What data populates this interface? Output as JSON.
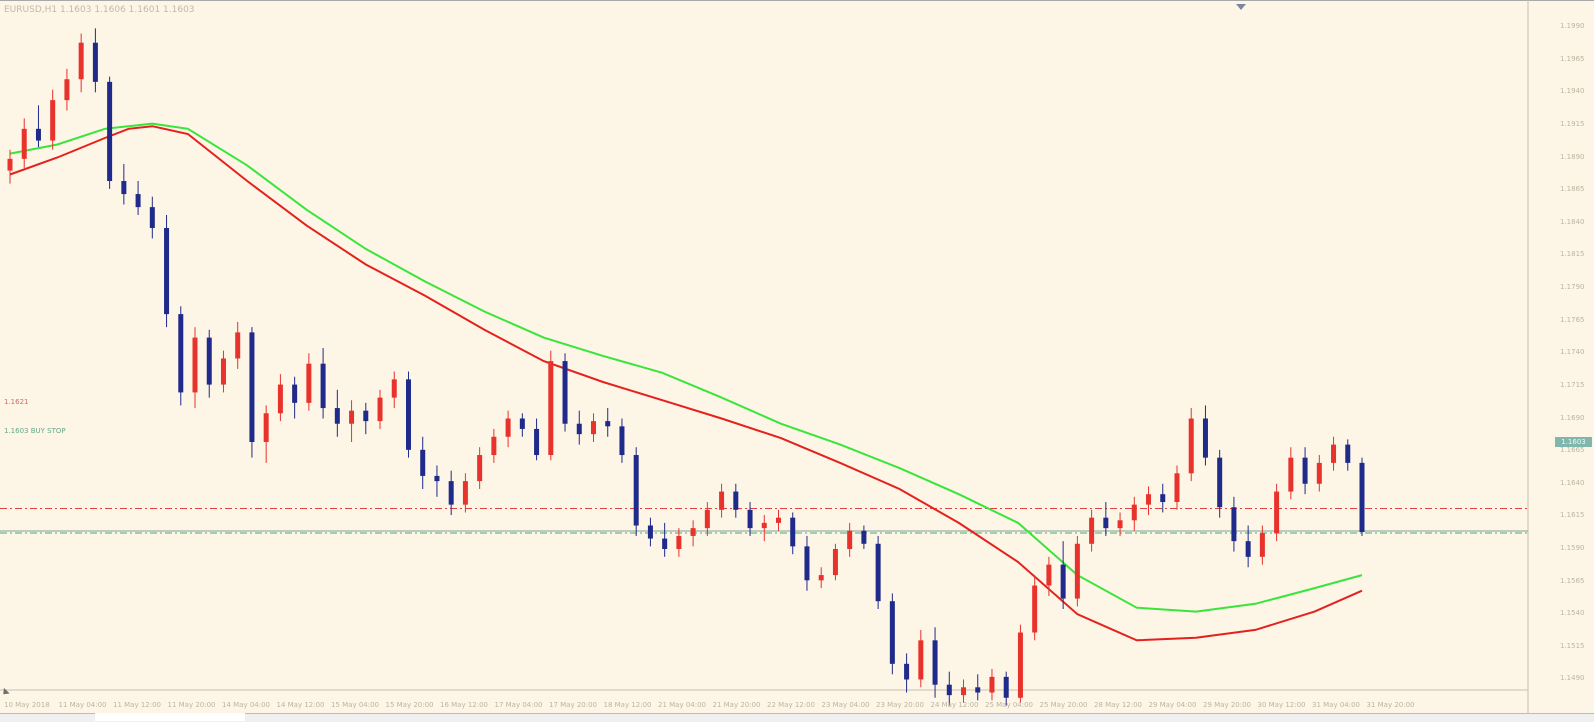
{
  "window": {
    "symbol_info": "EURUSD,H1  1.1603  1.1606  1.1601  1.1603"
  },
  "colors": {
    "background": "#fdf5e6",
    "bull_candle": "#e8322c",
    "bear_candle": "#1f2a8a",
    "ma_fast": "#e4211c",
    "ma_slow": "#38e53a",
    "level_red": "#e04242",
    "level_green": "#3fb06a",
    "bid_line": "#8a9aa0"
  },
  "price_axis": {
    "labels": [
      "1.1990",
      "1.1965",
      "1.1940",
      "1.1915",
      "1.1890",
      "1.1865",
      "1.1840",
      "1.1815",
      "1.1790",
      "1.1765",
      "1.1740",
      "1.1715",
      "1.1690",
      "1.1665",
      "1.1640",
      "1.1615",
      "1.1590",
      "1.1565",
      "1.1540",
      "1.1515",
      "1.1490"
    ]
  },
  "time_axis": {
    "labels": [
      "10 May 2018",
      "11 May 04:00",
      "11 May 12:00",
      "11 May 20:00",
      "14 May 04:00",
      "14 May 12:00",
      "15 May 04:00",
      "15 May 20:00",
      "16 May 12:00",
      "17 May 04:00",
      "17 May 20:00",
      "18 May 12:00",
      "21 May 04:00",
      "21 May 20:00",
      "22 May 12:00",
      "23 May 04:00",
      "23 May 20:00",
      "24 May 12:00",
      "25 May 04:00",
      "25 May 20:00",
      "28 May 12:00",
      "29 May 04:00",
      "29 May 20:00",
      "30 May 12:00",
      "31 May 04:00",
      "31 May 20:00"
    ]
  },
  "levels": {
    "red_caption": "1.1621",
    "green_caption": "1.1603 BUY STOP",
    "current_price": "1.1603"
  },
  "chart_data": {
    "type": "candlestick",
    "ylim": [
      1.1485,
      1.2
    ],
    "x_count": 1140,
    "candles": {
      "fields": [
        "x_index",
        "open",
        "high",
        "low",
        "close"
      ],
      "rows": [
        [
          0,
          1.188,
          1.1896,
          1.187,
          1.1889
        ],
        [
          12,
          1.1889,
          1.192,
          1.1882,
          1.1912
        ],
        [
          24,
          1.1912,
          1.193,
          1.1898,
          1.1903
        ],
        [
          36,
          1.1903,
          1.1942,
          1.1896,
          1.1934
        ],
        [
          48,
          1.1934,
          1.1958,
          1.1926,
          1.195
        ],
        [
          60,
          1.195,
          1.1985,
          1.194,
          1.1978
        ],
        [
          72,
          1.1978,
          1.1989,
          1.194,
          1.1948
        ],
        [
          84,
          1.1948,
          1.1952,
          1.1866,
          1.1872
        ],
        [
          96,
          1.1872,
          1.1885,
          1.1854,
          1.1862
        ],
        [
          108,
          1.1862,
          1.1872,
          1.1846,
          1.1852
        ],
        [
          120,
          1.1852,
          1.186,
          1.1828,
          1.1836
        ],
        [
          132,
          1.1836,
          1.1846,
          1.176,
          1.177
        ],
        [
          144,
          1.177,
          1.1776,
          1.17,
          1.171
        ],
        [
          156,
          1.171,
          1.176,
          1.1698,
          1.1752
        ],
        [
          168,
          1.1752,
          1.1758,
          1.1706,
          1.1716
        ],
        [
          180,
          1.1716,
          1.1742,
          1.171,
          1.1736
        ],
        [
          192,
          1.1736,
          1.1764,
          1.1728,
          1.1756
        ],
        [
          204,
          1.1756,
          1.176,
          1.166,
          1.1672
        ],
        [
          216,
          1.1672,
          1.17,
          1.1656,
          1.1694
        ],
        [
          228,
          1.1694,
          1.1724,
          1.1688,
          1.1716
        ],
        [
          240,
          1.1716,
          1.1722,
          1.169,
          1.1702
        ],
        [
          252,
          1.1702,
          1.174,
          1.1696,
          1.1732
        ],
        [
          264,
          1.1732,
          1.1744,
          1.169,
          1.1698
        ],
        [
          276,
          1.1698,
          1.1712,
          1.1676,
          1.1686
        ],
        [
          288,
          1.1686,
          1.1704,
          1.1672,
          1.1696
        ],
        [
          300,
          1.1696,
          1.1702,
          1.1678,
          1.1688
        ],
        [
          312,
          1.1688,
          1.1712,
          1.1682,
          1.1706
        ],
        [
          324,
          1.1706,
          1.1726,
          1.1698,
          1.172
        ],
        [
          336,
          1.172,
          1.1726,
          1.166,
          1.1666
        ],
        [
          348,
          1.1666,
          1.1676,
          1.1636,
          1.1646
        ],
        [
          360,
          1.1646,
          1.1654,
          1.163,
          1.1642
        ],
        [
          372,
          1.1642,
          1.165,
          1.1616,
          1.1624
        ],
        [
          384,
          1.1624,
          1.1648,
          1.1618,
          1.1642
        ],
        [
          396,
          1.1642,
          1.1668,
          1.1636,
          1.1662
        ],
        [
          408,
          1.1662,
          1.1682,
          1.1656,
          1.1676
        ],
        [
          420,
          1.1676,
          1.1696,
          1.1668,
          1.169
        ],
        [
          432,
          1.169,
          1.1694,
          1.1676,
          1.1682
        ],
        [
          444,
          1.1682,
          1.169,
          1.1658,
          1.1662
        ],
        [
          456,
          1.1662,
          1.1742,
          1.1658,
          1.1734
        ],
        [
          468,
          1.1734,
          1.174,
          1.168,
          1.1686
        ],
        [
          480,
          1.1686,
          1.1696,
          1.167,
          1.1678
        ],
        [
          492,
          1.1678,
          1.1694,
          1.1672,
          1.1688
        ],
        [
          504,
          1.1688,
          1.1698,
          1.1676,
          1.1684
        ],
        [
          516,
          1.1684,
          1.169,
          1.1656,
          1.1662
        ],
        [
          528,
          1.1662,
          1.1668,
          1.16,
          1.1608
        ],
        [
          540,
          1.1608,
          1.1614,
          1.1592,
          1.1598
        ],
        [
          552,
          1.1598,
          1.161,
          1.1584,
          1.159
        ],
        [
          564,
          1.159,
          1.1606,
          1.1584,
          1.16
        ],
        [
          576,
          1.16,
          1.1612,
          1.1592,
          1.1606
        ],
        [
          588,
          1.1606,
          1.1626,
          1.16,
          1.162
        ],
        [
          600,
          1.162,
          1.164,
          1.1614,
          1.1634
        ],
        [
          612,
          1.1634,
          1.164,
          1.1614,
          1.162
        ],
        [
          624,
          1.162,
          1.1626,
          1.16,
          1.1606
        ],
        [
          636,
          1.1606,
          1.1616,
          1.1596,
          1.161
        ],
        [
          648,
          1.161,
          1.162,
          1.1604,
          1.1614
        ],
        [
          660,
          1.1614,
          1.1618,
          1.1586,
          1.1592
        ],
        [
          672,
          1.1592,
          1.16,
          1.1558,
          1.1566
        ],
        [
          684,
          1.1566,
          1.1576,
          1.156,
          1.157
        ],
        [
          696,
          1.157,
          1.1594,
          1.1566,
          1.159
        ],
        [
          708,
          1.159,
          1.161,
          1.1584,
          1.1604
        ],
        [
          720,
          1.1604,
          1.1608,
          1.159,
          1.1594
        ],
        [
          732,
          1.1594,
          1.16,
          1.1544,
          1.155
        ],
        [
          744,
          1.155,
          1.1556,
          1.1494,
          1.1502
        ],
        [
          756,
          1.1502,
          1.151,
          1.148,
          1.149
        ],
        [
          768,
          1.149,
          1.1528,
          1.1484,
          1.152
        ],
        [
          780,
          1.152,
          1.153,
          1.1476,
          1.1486
        ],
        [
          792,
          1.1486,
          1.1496,
          1.147,
          1.1478
        ],
        [
          804,
          1.1478,
          1.149,
          1.1472,
          1.1484
        ],
        [
          816,
          1.1484,
          1.1494,
          1.1474,
          1.148
        ],
        [
          828,
          1.148,
          1.1498,
          1.1474,
          1.1492
        ],
        [
          840,
          1.1492,
          1.1496,
          1.147,
          1.1476
        ],
        [
          852,
          1.1476,
          1.1532,
          1.1472,
          1.1526
        ],
        [
          864,
          1.1526,
          1.157,
          1.152,
          1.1562
        ],
        [
          876,
          1.1562,
          1.1584,
          1.1554,
          1.1578
        ],
        [
          888,
          1.1578,
          1.1596,
          1.1544,
          1.1552
        ],
        [
          900,
          1.1552,
          1.16,
          1.1546,
          1.1594
        ],
        [
          912,
          1.1594,
          1.162,
          1.1588,
          1.1614
        ],
        [
          924,
          1.1614,
          1.1626,
          1.16,
          1.1606
        ],
        [
          936,
          1.1606,
          1.1618,
          1.16,
          1.1612
        ],
        [
          948,
          1.1612,
          1.163,
          1.1604,
          1.1624
        ],
        [
          960,
          1.1624,
          1.1638,
          1.1616,
          1.1632
        ],
        [
          972,
          1.1632,
          1.164,
          1.1618,
          1.1626
        ],
        [
          984,
          1.1626,
          1.1654,
          1.162,
          1.1648
        ],
        [
          996,
          1.1648,
          1.1698,
          1.1642,
          1.169
        ],
        [
          1008,
          1.169,
          1.17,
          1.1654,
          1.166
        ],
        [
          1020,
          1.166,
          1.1666,
          1.1614,
          1.1622
        ],
        [
          1032,
          1.1622,
          1.163,
          1.1588,
          1.1596
        ],
        [
          1044,
          1.1596,
          1.1608,
          1.1576,
          1.1584
        ],
        [
          1056,
          1.1584,
          1.1608,
          1.1578,
          1.1602
        ],
        [
          1068,
          1.1602,
          1.164,
          1.1596,
          1.1634
        ],
        [
          1080,
          1.1634,
          1.1668,
          1.1628,
          1.166
        ],
        [
          1092,
          1.166,
          1.1668,
          1.1632,
          1.164
        ],
        [
          1104,
          1.164,
          1.1662,
          1.1634,
          1.1656
        ],
        [
          1116,
          1.1656,
          1.1676,
          1.165,
          1.167
        ],
        [
          1128,
          1.167,
          1.1674,
          1.165,
          1.1656
        ],
        [
          1140,
          1.1656,
          1.166,
          1.16,
          1.1603
        ]
      ]
    },
    "series": [
      {
        "values_x": [
          0,
          40,
          80,
          100,
          120,
          150,
          200,
          250,
          300,
          350,
          400,
          450,
          500,
          550,
          600,
          650,
          700,
          750,
          800,
          850,
          900,
          950,
          1000,
          1050,
          1100,
          1140
        ],
        "values_y": [
          1.1893,
          1.19,
          1.1912,
          1.1914,
          1.1916,
          1.1912,
          1.1884,
          1.185,
          1.182,
          1.1795,
          1.1772,
          1.1752,
          1.1738,
          1.1725,
          1.1706,
          1.1686,
          1.167,
          1.1652,
          1.1632,
          1.161,
          1.157,
          1.1545,
          1.1542,
          1.1548,
          1.156,
          1.157
        ]
      },
      {
        "values_x": [
          0,
          40,
          80,
          100,
          120,
          150,
          200,
          250,
          300,
          350,
          400,
          450,
          500,
          550,
          600,
          650,
          700,
          750,
          800,
          850,
          900,
          950,
          1000,
          1050,
          1100,
          1140
        ],
        "values_y": [
          1.1877,
          1.189,
          1.1905,
          1.1912,
          1.1914,
          1.1908,
          1.1872,
          1.1838,
          1.1808,
          1.1784,
          1.1758,
          1.1734,
          1.1718,
          1.1704,
          1.169,
          1.1675,
          1.1656,
          1.1636,
          1.161,
          1.158,
          1.154,
          1.152,
          1.1522,
          1.1528,
          1.1542,
          1.1558
        ]
      }
    ],
    "levels": [
      1.1621,
      1.1603
    ]
  }
}
